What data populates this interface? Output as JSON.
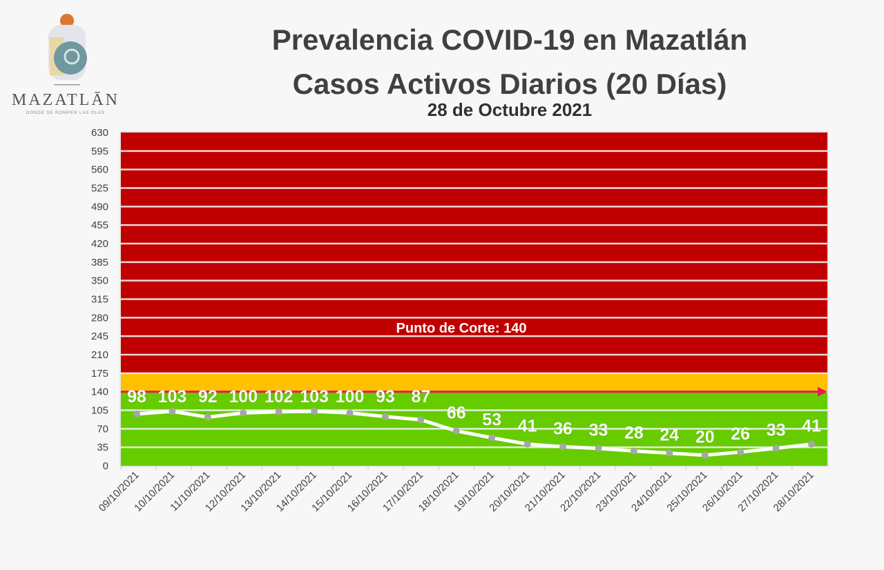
{
  "logo": {
    "text": "MAZATLĀN",
    "tagline": "DONDE SE ROMPEN LAS OLAS"
  },
  "chart_data": {
    "type": "line",
    "title": "Prevalencia COVID-19 en Mazatlán",
    "subtitle": "Casos Activos Diarios (20 Días)",
    "date": "28 de Octubre 2021",
    "categories": [
      "09/10/2021",
      "10/10/2021",
      "11/10/2021",
      "12/10/2021",
      "13/10/2021",
      "14/10/2021",
      "15/10/2021",
      "16/10/2021",
      "17/10/2021",
      "18/10/2021",
      "19/10/2021",
      "20/10/2021",
      "21/10/2021",
      "22/10/2021",
      "23/10/2021",
      "24/10/2021",
      "25/10/2021",
      "26/10/2021",
      "27/10/2021",
      "28/10/2021"
    ],
    "values": [
      98,
      103,
      92,
      100,
      102,
      103,
      100,
      93,
      87,
      66,
      53,
      41,
      36,
      33,
      28,
      24,
      20,
      26,
      33,
      41
    ],
    "ylim": [
      0,
      630
    ],
    "yticks": [
      0,
      35,
      70,
      105,
      140,
      175,
      210,
      245,
      280,
      315,
      350,
      385,
      420,
      455,
      490,
      525,
      560,
      595,
      630
    ],
    "grid": true,
    "bands": [
      {
        "from": 0,
        "to": 140,
        "color": "#66cc00"
      },
      {
        "from": 140,
        "to": 175,
        "color": "#ffc000"
      },
      {
        "from": 175,
        "to": 630,
        "color": "#c00000"
      }
    ],
    "cutoff": {
      "value": 140,
      "label": "Punto de Corte: 140",
      "color": "#e8185a"
    },
    "line_color": "#ffffff",
    "marker_color": "#a6a6a6"
  }
}
